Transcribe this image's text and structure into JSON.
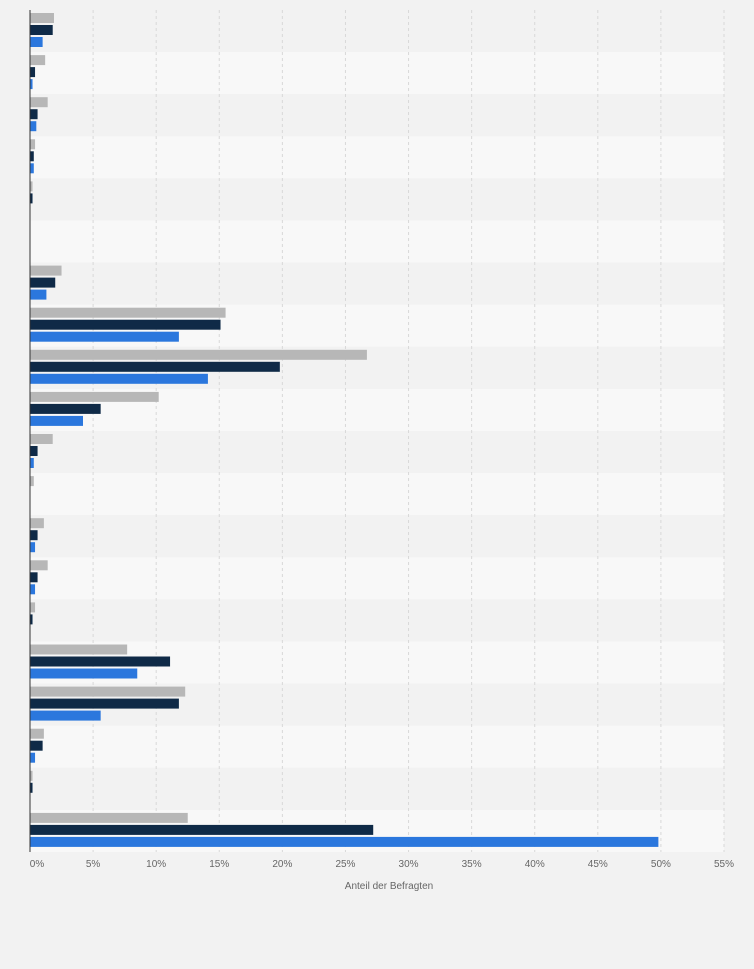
{
  "chart_data": {
    "type": "bar",
    "orientation": "horizontal",
    "title": "",
    "xlabel": "Anteil der Befragten",
    "ylabel": "",
    "xlim": [
      0,
      55
    ],
    "x_ticks": [
      {
        "value": 0,
        "label": "0%"
      },
      {
        "value": 5,
        "label": "5%"
      },
      {
        "value": 10,
        "label": "10%"
      },
      {
        "value": 15,
        "label": "15%"
      },
      {
        "value": 20,
        "label": "20%"
      },
      {
        "value": 25,
        "label": "25%"
      },
      {
        "value": 30,
        "label": "30%"
      },
      {
        "value": 35,
        "label": "35%"
      },
      {
        "value": 40,
        "label": "40%"
      },
      {
        "value": 45,
        "label": "45%"
      },
      {
        "value": 50,
        "label": "50%"
      },
      {
        "value": 55,
        "label": "55%"
      }
    ],
    "grid": true,
    "categories_count": 20,
    "series": [
      {
        "color": "#b7b7b7",
        "values": [
          1.9,
          1.2,
          1.4,
          0.4,
          0.2,
          0,
          2.5,
          15.5,
          26.7,
          10.2,
          1.8,
          0.3,
          1.1,
          1.4,
          0.4,
          7.7,
          12.3,
          1.1,
          0.2,
          12.5
        ]
      },
      {
        "color": "#0f2a47",
        "values": [
          1.8,
          0.4,
          0.6,
          0.3,
          0.2,
          0,
          2.0,
          15.1,
          19.8,
          5.6,
          0.6,
          0,
          0.6,
          0.6,
          0.2,
          11.1,
          11.8,
          1.0,
          0.2,
          27.2
        ]
      },
      {
        "color": "#2b77dd",
        "values": [
          1.0,
          0.2,
          0.5,
          0.3,
          0,
          0,
          1.3,
          11.8,
          14.1,
          4.2,
          0.3,
          0,
          0.4,
          0.4,
          0,
          8.5,
          5.6,
          0.4,
          0,
          49.8
        ]
      }
    ]
  }
}
